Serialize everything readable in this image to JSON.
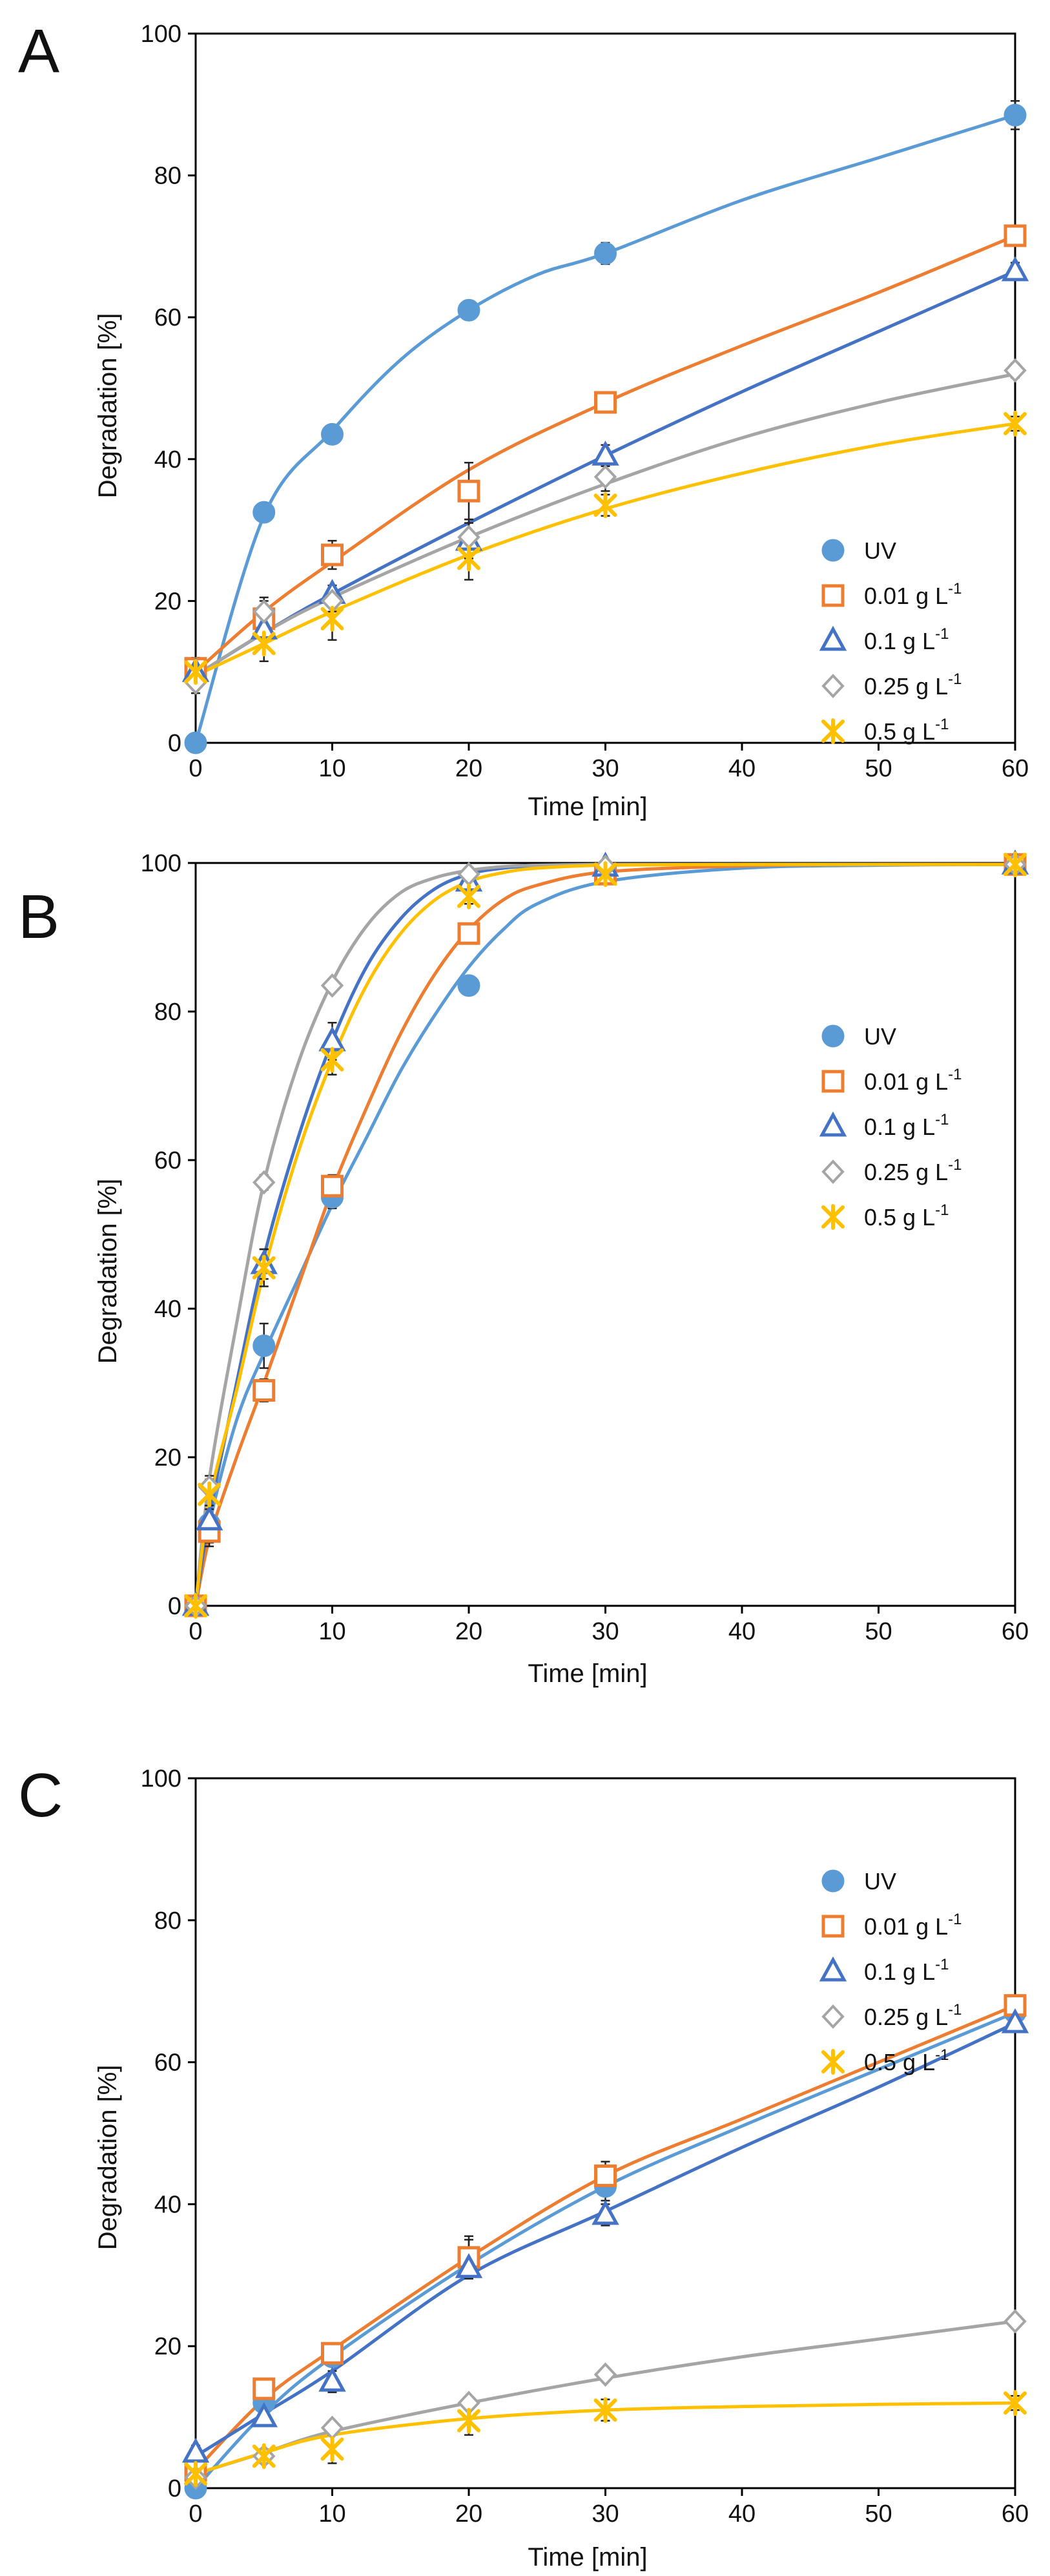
{
  "colors": {
    "UV": "#5b9bd5",
    "0.01": "#ed7d31",
    "0.1": "#4472c4",
    "0.25": "#a5a5a5",
    "0.5": "#ffc000"
  },
  "legend": [
    {
      "key": "UV",
      "label": "UV",
      "sup": "",
      "marker": "circle"
    },
    {
      "key": "0.01",
      "label": "0.01 g L",
      "sup": "-1",
      "marker": "square"
    },
    {
      "key": "0.1",
      "label": "0.1 g L",
      "sup": "-1",
      "marker": "triangle"
    },
    {
      "key": "0.25",
      "label": "0.25 g L",
      "sup": "-1",
      "marker": "diamond"
    },
    {
      "key": "0.5",
      "label": "0.5 g L",
      "sup": "-1",
      "marker": "star"
    }
  ],
  "chart_data": [
    {
      "panel": "A",
      "type": "scatter",
      "xlabel": "Time [min]",
      "ylabel": "Degradation [%]",
      "xlim": [
        0,
        60
      ],
      "ylim": [
        0,
        100
      ],
      "xticks": [
        0,
        10,
        20,
        30,
        40,
        50,
        60
      ],
      "yticks": [
        0,
        20,
        40,
        60,
        80,
        100
      ],
      "legend_position": "lower-right",
      "series": [
        {
          "name": "UV",
          "key": "UV",
          "x": [
            0,
            5,
            10,
            20,
            30,
            60
          ],
          "y": [
            0,
            32.5,
            43.5,
            61,
            69,
            88.5
          ],
          "err": [
            0,
            0.8,
            0.8,
            0.8,
            1.5,
            2.0
          ]
        },
        {
          "name": "0.01 g L-1",
          "key": "0.01",
          "x": [
            0,
            5,
            10,
            20,
            30,
            60
          ],
          "y": [
            10.5,
            17.5,
            26.5,
            35.5,
            48,
            71.5
          ],
          "err": [
            1.5,
            2.5,
            2.0,
            4.0,
            1.2,
            1.2
          ]
        },
        {
          "name": "0.1 g L-1",
          "key": "0.1",
          "x": [
            0,
            5,
            10,
            20,
            30,
            60
          ],
          "y": [
            10,
            16,
            21,
            28.5,
            40.5,
            66.5
          ],
          "err": [
            1.5,
            1.5,
            1.2,
            2.5,
            1.5,
            1.2
          ]
        },
        {
          "name": "0.25 g L-1",
          "key": "0.25",
          "x": [
            0,
            5,
            10,
            20,
            30,
            60
          ],
          "y": [
            8.5,
            18.5,
            20,
            29,
            37.5,
            52.5
          ],
          "err": [
            1.5,
            2.0,
            1.5,
            2.5,
            2.0,
            1.0
          ]
        },
        {
          "name": "0.5 g L-1",
          "key": "0.5",
          "x": [
            0,
            5,
            10,
            20,
            30,
            60
          ],
          "y": [
            10,
            14,
            17.5,
            26,
            33.5,
            45
          ],
          "err": [
            2.0,
            2.5,
            3.0,
            3.0,
            1.5,
            1.0
          ]
        }
      ],
      "curves": [
        {
          "key": "UV",
          "x": [
            0,
            5,
            10,
            15,
            20,
            25,
            30,
            40,
            50,
            60
          ],
          "y": [
            0,
            32,
            44,
            54,
            61,
            66,
            69,
            76.5,
            82.5,
            88.5
          ]
        },
        {
          "key": "0.01",
          "x": [
            0,
            5,
            10,
            20,
            30,
            40,
            50,
            60
          ],
          "y": [
            10,
            18.5,
            25.5,
            38.5,
            48,
            56,
            63.5,
            71.5
          ]
        },
        {
          "key": "0.1",
          "x": [
            0,
            5,
            10,
            20,
            30,
            40,
            50,
            60
          ],
          "y": [
            9.5,
            15.5,
            21,
            31,
            40.5,
            49.5,
            58,
            66.5
          ]
        },
        {
          "key": "0.25",
          "x": [
            0,
            5,
            10,
            20,
            30,
            40,
            50,
            60
          ],
          "y": [
            9.5,
            15.5,
            20.5,
            29,
            36.5,
            43,
            48,
            52
          ]
        },
        {
          "key": "0.5",
          "x": [
            0,
            5,
            10,
            20,
            30,
            40,
            50,
            60
          ],
          "y": [
            9.5,
            14,
            18.5,
            26.5,
            33,
            38,
            42,
            45
          ]
        }
      ]
    },
    {
      "panel": "B",
      "type": "scatter",
      "xlabel": "Time [min]",
      "ylabel": "Degradation [%]",
      "xlim": [
        0,
        60
      ],
      "ylim": [
        0,
        100
      ],
      "xticks": [
        0,
        10,
        20,
        30,
        40,
        50,
        60
      ],
      "yticks": [
        0,
        20,
        40,
        60,
        80,
        100
      ],
      "legend_position": "top-right",
      "series": [
        {
          "name": "UV",
          "key": "UV",
          "x": [
            0,
            1,
            5,
            10,
            20,
            30,
            60
          ],
          "y": [
            0,
            11,
            35,
            55,
            83.5,
            98.5,
            99.8
          ],
          "err": [
            0,
            2.5,
            3.0,
            1.5,
            1.0,
            0.5,
            0.2
          ]
        },
        {
          "name": "0.01 g L-1",
          "key": "0.01",
          "x": [
            0,
            1,
            5,
            10,
            20,
            30,
            60
          ],
          "y": [
            0,
            10,
            29,
            56.5,
            90.5,
            98.5,
            99.8
          ],
          "err": [
            0,
            2.0,
            1.5,
            1.5,
            1.0,
            0.5,
            0.2
          ]
        },
        {
          "name": "0.1 g L-1",
          "key": "0.1",
          "x": [
            0,
            1,
            5,
            10,
            20,
            30,
            60
          ],
          "y": [
            0,
            11.5,
            46,
            76,
            97.5,
            99.5,
            99.8
          ],
          "err": [
            0,
            2.0,
            2.0,
            2.5,
            0.5,
            0.3,
            0.2
          ]
        },
        {
          "name": "0.25 g L-1",
          "key": "0.25",
          "x": [
            0,
            1,
            5,
            10,
            20,
            30,
            60
          ],
          "y": [
            0,
            16,
            57,
            83.5,
            98.5,
            99.5,
            99.8
          ],
          "err": [
            0,
            1.5,
            1.0,
            0.8,
            0.5,
            0.3,
            0.2
          ]
        },
        {
          "name": "0.5 g L-1",
          "key": "0.5",
          "x": [
            0,
            1,
            5,
            10,
            20,
            30,
            60
          ],
          "y": [
            0,
            15,
            45.5,
            73.5,
            95.5,
            98.5,
            99.8
          ],
          "err": [
            0,
            2.0,
            2.5,
            2.0,
            1.0,
            0.5,
            0.2
          ]
        }
      ],
      "curves": [
        {
          "key": "UV",
          "x": [
            0,
            1,
            3,
            5,
            7.5,
            10,
            12.5,
            15,
            17.5,
            20,
            22.5,
            25,
            30,
            40,
            50,
            60
          ],
          "y": [
            0,
            11,
            25,
            34,
            44,
            54,
            63,
            72,
            79.5,
            86,
            91,
            94.5,
            97.5,
            99.3,
            99.7,
            99.8
          ]
        },
        {
          "key": "0.01",
          "x": [
            0,
            1,
            3,
            5,
            7.5,
            10,
            12.5,
            15,
            17.5,
            20,
            22.5,
            25,
            30,
            40,
            50,
            60
          ],
          "y": [
            0,
            9,
            20,
            30,
            43,
            56,
            67,
            77,
            85,
            91,
            95,
            97,
            98.8,
            99.6,
            99.8,
            99.8
          ]
        },
        {
          "key": "0.1",
          "x": [
            0,
            1,
            3,
            5,
            7.5,
            10,
            12.5,
            15,
            17.5,
            20,
            22.5,
            25,
            30,
            40,
            50,
            60
          ],
          "y": [
            0,
            12,
            30,
            47,
            63,
            76,
            86,
            92.5,
            96.5,
            98.5,
            99.3,
            99.6,
            99.8,
            99.8,
            99.8,
            99.8
          ]
        },
        {
          "key": "0.25",
          "x": [
            0,
            1,
            3,
            5,
            7.5,
            10,
            12.5,
            15,
            17.5,
            20,
            22.5,
            25,
            30,
            40,
            50,
            60
          ],
          "y": [
            0,
            17,
            38,
            57,
            73,
            84,
            91.5,
            96,
            98,
            99,
            99.5,
            99.7,
            99.8,
            99.8,
            99.8,
            99.8
          ]
        },
        {
          "key": "0.5",
          "x": [
            0,
            1,
            3,
            5,
            7.5,
            10,
            12.5,
            15,
            17.5,
            20,
            22.5,
            25,
            30,
            40,
            50,
            60
          ],
          "y": [
            0,
            14,
            29,
            45,
            61,
            73.5,
            83.5,
            90.5,
            95,
            97.5,
            98.7,
            99.3,
            99.7,
            99.8,
            99.8,
            99.8
          ]
        }
      ]
    },
    {
      "panel": "C",
      "type": "scatter",
      "xlabel": "Time [min]",
      "ylabel": "Degradation [%]",
      "xlim": [
        0,
        60
      ],
      "ylim": [
        0,
        100
      ],
      "xticks": [
        0,
        10,
        20,
        30,
        40,
        50,
        60
      ],
      "yticks": [
        0,
        20,
        40,
        60,
        80,
        100
      ],
      "legend_position": "top-right",
      "series": [
        {
          "name": "UV",
          "key": "UV",
          "x": [
            0,
            5,
            10,
            20,
            30,
            60
          ],
          "y": [
            0,
            12,
            18.5,
            32.5,
            42.5,
            67
          ],
          "err": [
            0,
            1.0,
            1.2,
            3.0,
            2.0,
            1.0
          ]
        },
        {
          "name": "0.01 g L-1",
          "key": "0.01",
          "x": [
            0,
            5,
            10,
            20,
            30,
            60
          ],
          "y": [
            2.5,
            14,
            19,
            32.5,
            44,
            68
          ],
          "err": [
            1.0,
            1.2,
            1.2,
            2.5,
            2.0,
            1.0
          ]
        },
        {
          "name": "0.1 g L-1",
          "key": "0.1",
          "x": [
            0,
            5,
            10,
            20,
            30,
            60
          ],
          "y": [
            5,
            10,
            15,
            31,
            38.5,
            65.5
          ],
          "err": [
            1.0,
            1.2,
            1.5,
            1.5,
            1.5,
            1.2
          ]
        },
        {
          "name": "0.25 g L-1",
          "key": "0.25",
          "x": [
            0,
            5,
            10,
            20,
            30,
            60
          ],
          "y": [
            1.5,
            4.5,
            8.5,
            12,
            16,
            23.5
          ],
          "err": [
            0.8,
            0.8,
            0.8,
            0.8,
            0.8,
            0.8
          ]
        },
        {
          "name": "0.5 g L-1",
          "key": "0.5",
          "x": [
            0,
            5,
            10,
            20,
            30,
            60
          ],
          "y": [
            2,
            4.5,
            5.5,
            9.5,
            11,
            12
          ],
          "err": [
            1.0,
            1.0,
            2.0,
            2.0,
            1.5,
            1.0
          ]
        }
      ],
      "curves": [
        {
          "key": "UV",
          "x": [
            0,
            5,
            10,
            20,
            30,
            40,
            50,
            60
          ],
          "y": [
            0,
            10.5,
            18.5,
            31.5,
            42.5,
            51,
            59,
            67
          ]
        },
        {
          "key": "0.01",
          "x": [
            0,
            5,
            10,
            20,
            30,
            40,
            50,
            60
          ],
          "y": [
            2.5,
            12.5,
            19.5,
            32.5,
            44,
            52,
            60,
            68
          ]
        },
        {
          "key": "0.1",
          "x": [
            0,
            5,
            10,
            20,
            30,
            40,
            50,
            60
          ],
          "y": [
            4.5,
            10.5,
            16.5,
            30,
            39,
            48,
            56.5,
            65.5
          ]
        },
        {
          "key": "0.25",
          "x": [
            0,
            5,
            10,
            20,
            30,
            40,
            50,
            60
          ],
          "y": [
            2,
            5,
            8,
            12,
            15.5,
            18.5,
            21,
            23.5
          ]
        },
        {
          "key": "0.5",
          "x": [
            0,
            5,
            10,
            20,
            30,
            40,
            50,
            60
          ],
          "y": [
            2,
            5,
            7.5,
            9.8,
            11,
            11.5,
            11.8,
            12
          ]
        }
      ]
    }
  ]
}
